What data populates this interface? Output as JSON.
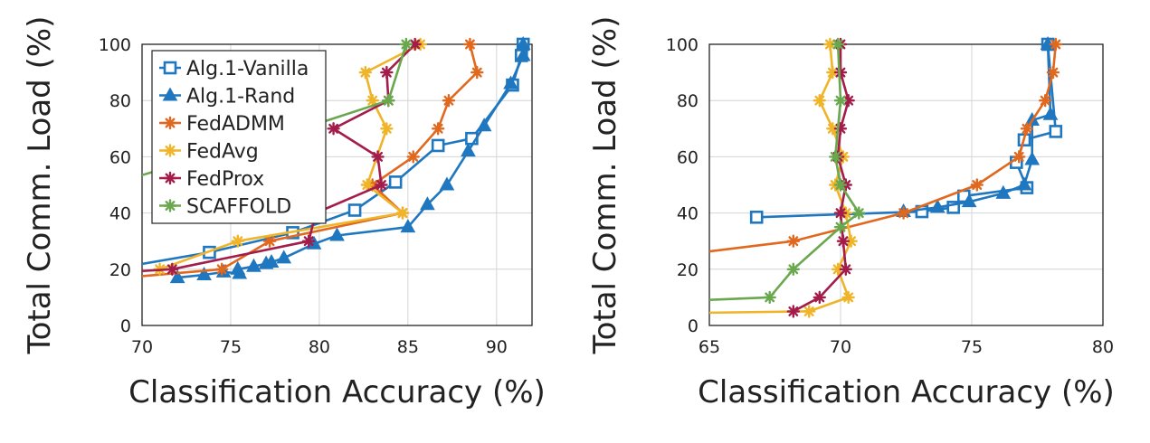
{
  "colors": {
    "Alg.1-Vanilla": "#1f77c0",
    "Alg.1-Rand": "#1f77c0",
    "FedADMM": "#e0681f",
    "FedAvg": "#f0b429",
    "FedProx": "#a31d4a",
    "SCAFFOLD": "#6aa84f"
  },
  "chart_data": [
    {
      "type": "line",
      "xlabel": "Classification Accuracy (%)",
      "ylabel": "Total Comm. Load (%)",
      "xlim": [
        70,
        92
      ],
      "ylim": [
        0,
        100
      ],
      "xticks": [
        "70",
        "75",
        "80",
        "85",
        "90"
      ],
      "yticks": [
        "0",
        "20",
        "40",
        "60",
        "80",
        "100"
      ],
      "grid": true,
      "legend": "top-left",
      "series": [
        {
          "name": "Alg.1-Vanilla",
          "marker": "square",
          "points": [
            [
              69.2,
              21
            ],
            [
              73.8,
              26
            ],
            [
              78.5,
              33
            ],
            [
              82.0,
              41
            ],
            [
              84.3,
              51
            ],
            [
              86.7,
              64
            ],
            [
              88.6,
              66.5
            ],
            [
              90.9,
              85.5
            ],
            [
              91.4,
              96
            ],
            [
              91.5,
              100
            ]
          ]
        },
        {
          "name": "Alg.1-Rand",
          "marker": "triangle",
          "points": [
            [
              72.0,
              17
            ],
            [
              73.5,
              18
            ],
            [
              74.6,
              19
            ],
            [
              75.5,
              18.5
            ],
            [
              75.4,
              20
            ],
            [
              76.3,
              21
            ],
            [
              77.0,
              22
            ],
            [
              77.3,
              22.5
            ],
            [
              78.0,
              24
            ],
            [
              79.7,
              29
            ],
            [
              81.0,
              32
            ],
            [
              85.0,
              35
            ],
            [
              86.1,
              43
            ],
            [
              87.2,
              50
            ],
            [
              88.4,
              62
            ],
            [
              89.3,
              71
            ],
            [
              90.8,
              86
            ],
            [
              91.5,
              96
            ],
            [
              91.5,
              100
            ]
          ]
        },
        {
          "name": "FedADMM",
          "marker": "asterisk",
          "points": [
            [
              69.0,
              17
            ],
            [
              74.5,
              20
            ],
            [
              77.2,
              30
            ],
            [
              84.7,
              40
            ],
            [
              83.0,
              50
            ],
            [
              85.3,
              60
            ],
            [
              86.7,
              70
            ],
            [
              87.3,
              80
            ],
            [
              88.9,
              90
            ],
            [
              88.5,
              100
            ]
          ]
        },
        {
          "name": "FedAvg",
          "marker": "asterisk",
          "points": [
            [
              71.0,
              20
            ],
            [
              75.4,
              30
            ],
            [
              84.7,
              40
            ],
            [
              82.7,
              50
            ],
            [
              83.8,
              70
            ],
            [
              83.0,
              80
            ],
            [
              82.6,
              90
            ],
            [
              85.7,
              100
            ]
          ]
        },
        {
          "name": "FedProx",
          "marker": "asterisk",
          "points": [
            [
              69.0,
              19
            ],
            [
              71.7,
              20
            ],
            [
              79.4,
              30
            ],
            [
              79.8,
              40
            ],
            [
              83.5,
              50
            ],
            [
              83.3,
              60
            ],
            [
              80.8,
              70
            ],
            [
              83.9,
              80
            ],
            [
              83.8,
              90
            ],
            [
              85.4,
              100
            ]
          ]
        },
        {
          "name": "SCAFFOLD",
          "marker": "asterisk",
          "points": [
            [
              69.2,
              52
            ],
            [
              80.0,
              72
            ],
            [
              83.9,
              80
            ],
            [
              84.9,
              100
            ]
          ]
        }
      ]
    },
    {
      "type": "line",
      "xlabel": "Classification Accuracy (%)",
      "ylabel": "Total Comm. Load (%)",
      "xlim": [
        65,
        80
      ],
      "ylim": [
        0,
        100
      ],
      "xticks": [
        "65",
        "70",
        "75",
        "80"
      ],
      "yticks": [
        "0",
        "20",
        "40",
        "60",
        "80",
        "100"
      ],
      "grid": true,
      "series": [
        {
          "name": "Alg.1-Vanilla",
          "marker": "square",
          "points": [
            [
              66.8,
              38.5
            ],
            [
              73.1,
              40.5
            ],
            [
              74.3,
              42
            ],
            [
              74.7,
              46
            ],
            [
              77.1,
              49
            ],
            [
              76.7,
              58
            ],
            [
              77.0,
              66
            ],
            [
              78.2,
              69
            ],
            [
              77.9,
              100
            ]
          ]
        },
        {
          "name": "Alg.1-Rand",
          "marker": "triangle",
          "points": [
            [
              72.4,
              40.5
            ],
            [
              73.7,
              42
            ],
            [
              74.9,
              44
            ],
            [
              76.2,
              47
            ],
            [
              77.0,
              50
            ],
            [
              77.3,
              59
            ],
            [
              77.3,
              73
            ],
            [
              78.0,
              75
            ],
            [
              77.9,
              100
            ]
          ]
        },
        {
          "name": "FedADMM",
          "marker": "asterisk",
          "points": [
            [
              64.7,
              26
            ],
            [
              68.2,
              30
            ],
            [
              72.4,
              40
            ],
            [
              75.2,
              50
            ],
            [
              76.8,
              60
            ],
            [
              77.1,
              70
            ],
            [
              77.8,
              80
            ],
            [
              78.1,
              90
            ],
            [
              78.2,
              100
            ]
          ]
        },
        {
          "name": "FedAvg",
          "marker": "asterisk",
          "points": [
            [
              64.7,
              4.5
            ],
            [
              68.8,
              5
            ],
            [
              70.3,
              10
            ],
            [
              69.9,
              20
            ],
            [
              70.4,
              30
            ],
            [
              70.2,
              40
            ],
            [
              69.8,
              50
            ],
            [
              70.1,
              60
            ],
            [
              69.7,
              70
            ],
            [
              69.2,
              80
            ],
            [
              69.7,
              90
            ],
            [
              69.6,
              100
            ]
          ]
        },
        {
          "name": "FedProx",
          "marker": "asterisk",
          "points": [
            [
              68.2,
              5
            ],
            [
              69.2,
              10
            ],
            [
              70.2,
              20
            ],
            [
              70.1,
              30
            ],
            [
              70.0,
              40
            ],
            [
              70.2,
              50
            ],
            [
              69.9,
              60
            ],
            [
              70.0,
              70
            ],
            [
              70.3,
              80
            ],
            [
              70.0,
              90
            ],
            [
              70.0,
              100
            ]
          ]
        },
        {
          "name": "SCAFFOLD",
          "marker": "asterisk",
          "points": [
            [
              64.7,
              9
            ],
            [
              67.3,
              10
            ],
            [
              68.2,
              20
            ],
            [
              70.0,
              35
            ],
            [
              70.7,
              40
            ],
            [
              70.0,
              50
            ],
            [
              69.8,
              60
            ],
            [
              70.0,
              80
            ],
            [
              69.9,
              100
            ]
          ]
        }
      ]
    }
  ]
}
